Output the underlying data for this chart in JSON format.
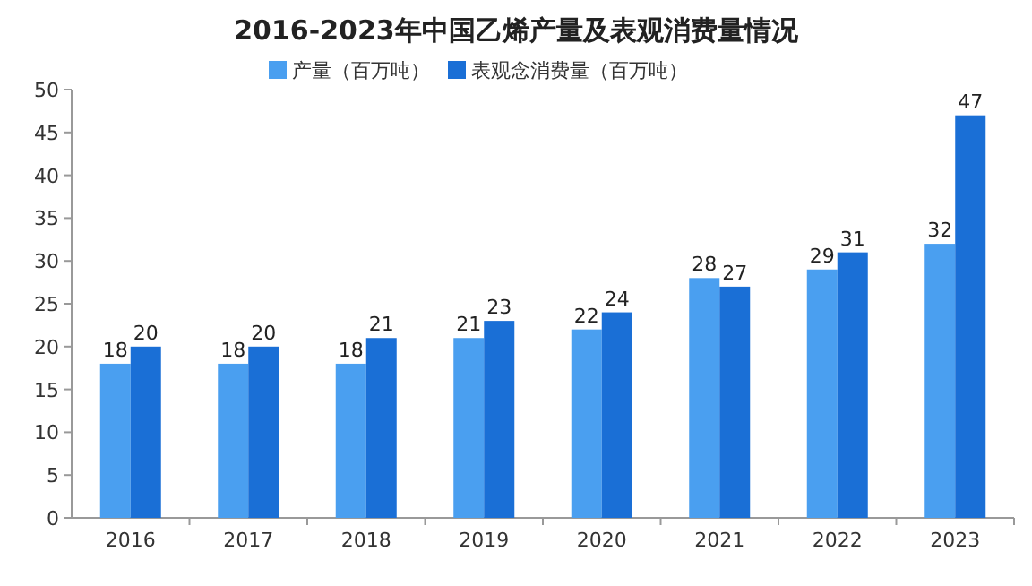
{
  "chart_data": {
    "type": "bar",
    "title": "2016-2023年中国乙烯产量及表观消费量情况",
    "categories": [
      "2016",
      "2017",
      "2018",
      "2019",
      "2020",
      "2021",
      "2022",
      "2023"
    ],
    "series": [
      {
        "name": "产量（百万吨）",
        "color": "#4a9ff0",
        "values": [
          18,
          18,
          18,
          21,
          22,
          28,
          29,
          32
        ]
      },
      {
        "name": "表观念消费量（百万吨）",
        "color": "#1a6fd6",
        "values": [
          20,
          20,
          21,
          23,
          24,
          27,
          31,
          47
        ]
      }
    ],
    "ylim": [
      0,
      50
    ],
    "yticks": [
      0,
      5,
      10,
      15,
      20,
      25,
      30,
      35,
      40,
      45,
      50
    ],
    "data_labels": true,
    "legend": "top left",
    "grid": false
  }
}
